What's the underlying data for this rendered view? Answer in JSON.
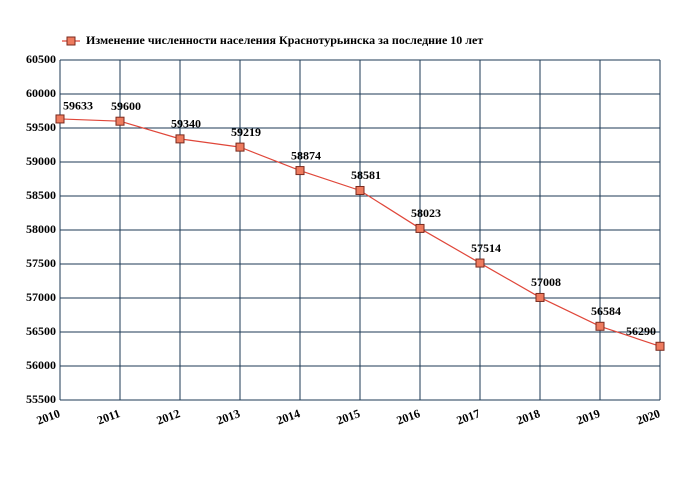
{
  "chart_data": {
    "type": "line",
    "x": [
      2010,
      2011,
      2012,
      2013,
      2014,
      2015,
      2016,
      2017,
      2018,
      2019,
      2020
    ],
    "series": [
      {
        "name": "Изменение численности населения Краснотурьинска за последние 10 лет",
        "color": "#e0473a",
        "values": [
          59633,
          59600,
          59340,
          59219,
          58874,
          58581,
          58023,
          57514,
          57008,
          56584,
          56290
        ]
      }
    ],
    "xlim": [
      2010,
      2020
    ],
    "xticks": [
      2010,
      2011,
      2012,
      2013,
      2014,
      2015,
      2016,
      2017,
      2018,
      2019,
      2020
    ],
    "ylim": [
      55500,
      60500
    ],
    "yticks": [
      55500,
      56000,
      56500,
      57000,
      57500,
      58000,
      58500,
      59000,
      59500,
      60000,
      60500
    ],
    "grid": true,
    "legend": "top"
  }
}
